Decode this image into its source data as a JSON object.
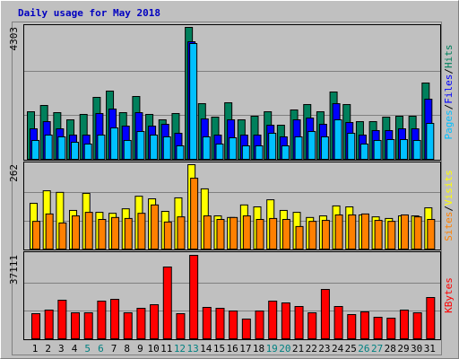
{
  "chart_data": [
    {
      "type": "bar",
      "title": "Daily usage for May 2018",
      "ylim": [
        0,
        4303
      ],
      "yticks": [
        4303
      ],
      "legend_separator": "/",
      "series": [
        {
          "name": "Hits",
          "color": "#00805c",
          "values": [
            1551,
            1756,
            1522,
            1288,
            1464,
            2020,
            2225,
            1522,
            2049,
            1464,
            1288,
            1493,
            4303,
            1815,
            1376,
            1844,
            1288,
            1405,
            1551,
            1112,
            1610,
            1786,
            1551,
            2195,
            1786,
            1229,
            1229,
            1376,
            1405,
            1405,
            2488
          ]
        },
        {
          "name": "Files",
          "color": "#0000ff",
          "values": [
            995,
            1229,
            995,
            790,
            790,
            1493,
            1639,
            1083,
            1522,
            1083,
            1142,
            849,
            3834,
            1317,
            790,
            1288,
            790,
            790,
            1112,
            732,
            1288,
            1346,
            1142,
            1815,
            1200,
            790,
            937,
            937,
            995,
            995,
            1961
          ]
        },
        {
          "name": "Pages",
          "color": "#00c0ff",
          "values": [
            615,
            790,
            732,
            556,
            498,
            790,
            1024,
            615,
            907,
            790,
            732,
            439,
            3776,
            732,
            498,
            702,
            439,
            439,
            849,
            439,
            732,
            907,
            732,
            1288,
            849,
            498,
            615,
            644,
            644,
            615,
            1171
          ]
        }
      ]
    },
    {
      "type": "bar",
      "ylim": [
        0,
        262
      ],
      "yticks": [
        262
      ],
      "legend_separator": "/",
      "series": [
        {
          "name": "Visits",
          "color": "#ffff00",
          "values": [
            142,
            181,
            176,
            120,
            173,
            114,
            111,
            125,
            164,
            156,
            117,
            159,
            262,
            187,
            103,
            98,
            137,
            131,
            153,
            120,
            114,
            98,
            103,
            134,
            131,
            106,
            100,
            95,
            103,
            103,
            128
          ]
        },
        {
          "name": "Sites",
          "color": "#ff8000",
          "values": [
            86,
            109,
            81,
            103,
            114,
            92,
            98,
            95,
            111,
            137,
            84,
            100,
            220,
            103,
            92,
            98,
            103,
            92,
            95,
            92,
            70,
            86,
            89,
            106,
            106,
            109,
            89,
            86,
            106,
            100,
            92
          ]
        }
      ]
    },
    {
      "type": "bar",
      "ylim": [
        0,
        37111
      ],
      "yticks": [
        37111
      ],
      "categories": [
        "1",
        "2",
        "3",
        "4",
        "5",
        "6",
        "7",
        "8",
        "9",
        "10",
        "11",
        "12",
        "13",
        "14",
        "15",
        "16",
        "17",
        "18",
        "19",
        "20",
        "21",
        "22",
        "23",
        "24",
        "25",
        "26",
        "27",
        "28",
        "29",
        "30",
        "31"
      ],
      "category_colors": [
        "#000000",
        "#000000",
        "#000000",
        "#000000",
        "#008080",
        "#008080",
        "#000000",
        "#000000",
        "#000000",
        "#000000",
        "#000000",
        "#008080",
        "#008080",
        "#000000",
        "#000000",
        "#000000",
        "#000000",
        "#000000",
        "#008080",
        "#008080",
        "#000000",
        "#000000",
        "#000000",
        "#000000",
        "#000000",
        "#008080",
        "#008080",
        "#000000",
        "#000000",
        "#000000",
        "#000000"
      ],
      "series": [
        {
          "name": "KBytes",
          "color": "#ff0000",
          "values": [
            11172,
            12768,
            17157,
            11571,
            11571,
            16758,
            17556,
            11571,
            13566,
            15162,
            31920,
            11172,
            37111,
            13965,
            13566,
            12369,
            8778,
            12369,
            16758,
            15960,
            14364,
            11571,
            21945,
            14364,
            10773,
            11970,
            9576,
            9177,
            12768,
            11571,
            18354
          ]
        }
      ]
    }
  ]
}
